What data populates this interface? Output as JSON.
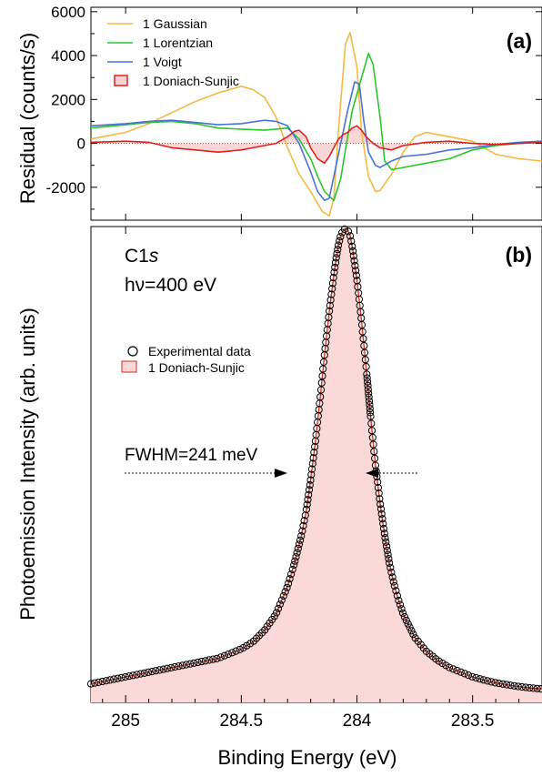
{
  "chart_data": [
    {
      "panel": "(a)",
      "type": "line",
      "ylabel": "Residual (counts/s)",
      "xlim": [
        285.15,
        283.2
      ],
      "ylim": [
        -3500,
        6200
      ],
      "yticks": [
        -2000,
        0,
        2000,
        4000,
        6000
      ],
      "yticklabels": [
        "-2000",
        "0",
        "2000",
        "4000",
        "6000"
      ],
      "grid": false,
      "zero_line": "dotted",
      "legend_position": "top-left",
      "series": [
        {
          "name": "1 Gaussian",
          "color": "#f5b942",
          "x": [
            285.15,
            285.0,
            284.9,
            284.8,
            284.7,
            284.6,
            284.5,
            284.45,
            284.4,
            284.35,
            284.3,
            284.25,
            284.2,
            284.15,
            284.12,
            284.1,
            284.08,
            284.05,
            284.03,
            284.0,
            283.98,
            283.95,
            283.92,
            283.9,
            283.85,
            283.8,
            283.75,
            283.7,
            283.6,
            283.5,
            283.4,
            283.3,
            283.2
          ],
          "y": [
            200,
            500,
            900,
            1400,
            1900,
            2300,
            2600,
            2450,
            2100,
            1200,
            -200,
            -1400,
            -2200,
            -3100,
            -3300,
            -2500,
            600,
            4500,
            5050,
            3500,
            500,
            -1500,
            -2200,
            -2150,
            -1400,
            -400,
            300,
            500,
            300,
            100,
            -500,
            -700,
            -800
          ]
        },
        {
          "name": "1 Lorentzian",
          "color": "#2cc52c",
          "x": [
            285.15,
            285.0,
            284.9,
            284.8,
            284.7,
            284.6,
            284.5,
            284.4,
            284.35,
            284.3,
            284.25,
            284.2,
            284.17,
            284.14,
            284.1,
            284.07,
            284.05,
            284.02,
            283.98,
            283.95,
            283.93,
            283.9,
            283.88,
            283.85,
            283.8,
            283.7,
            283.6,
            283.5,
            283.4,
            283.3,
            283.2
          ],
          "y": [
            700,
            850,
            950,
            1000,
            900,
            700,
            650,
            600,
            650,
            700,
            200,
            -700,
            -1500,
            -2200,
            -2600,
            -1600,
            -300,
            1500,
            3000,
            4100,
            3600,
            1200,
            -800,
            -1200,
            -1100,
            -900,
            -700,
            -300,
            -100,
            0,
            100
          ]
        },
        {
          "name": "1 Voigt",
          "color": "#4a72d6",
          "x": [
            285.15,
            285.0,
            284.9,
            284.8,
            284.7,
            284.6,
            284.5,
            284.4,
            284.35,
            284.3,
            284.25,
            284.2,
            284.17,
            284.14,
            284.12,
            284.1,
            284.07,
            284.04,
            284.01,
            283.99,
            283.97,
            283.95,
            283.92,
            283.9,
            283.85,
            283.8,
            283.7,
            283.6,
            283.5,
            283.4,
            283.3,
            283.2
          ],
          "y": [
            800,
            900,
            1000,
            1050,
            950,
            850,
            900,
            1050,
            1000,
            800,
            0,
            -1300,
            -2200,
            -2600,
            -2500,
            -1500,
            0,
            1500,
            2800,
            2700,
            1000,
            -400,
            -1000,
            -1100,
            -800,
            -600,
            -500,
            -300,
            -200,
            -50,
            50,
            100
          ]
        },
        {
          "name": "1 Doniach-Sunjic",
          "color": "#e0201c",
          "fill": "#fbd2d2",
          "x": [
            285.15,
            285.0,
            284.9,
            284.8,
            284.7,
            284.6,
            284.5,
            284.45,
            284.4,
            284.35,
            284.3,
            284.27,
            284.25,
            284.22,
            284.2,
            284.17,
            284.14,
            284.12,
            284.1,
            284.08,
            284.06,
            284.04,
            284.02,
            284.0,
            283.98,
            283.96,
            283.93,
            283.9,
            283.85,
            283.8,
            283.7,
            283.6,
            283.5,
            283.4,
            283.3,
            283.2
          ],
          "y": [
            50,
            100,
            50,
            -200,
            -300,
            -400,
            -300,
            -200,
            -100,
            0,
            300,
            550,
            600,
            300,
            -200,
            -700,
            -900,
            -600,
            -200,
            200,
            400,
            500,
            700,
            800,
            600,
            300,
            0,
            -200,
            -300,
            -100,
            50,
            100,
            0,
            -50,
            0,
            50
          ]
        }
      ]
    },
    {
      "panel": "(b)",
      "type": "scatter",
      "xlabel": "Binding Energy (eV)",
      "ylabel": "Photoemission Intensity (arb. units)",
      "xlim": [
        285.15,
        283.2
      ],
      "xticks": [
        285,
        284.5,
        284,
        283.5
      ],
      "xticklabels": [
        "285",
        "284.5",
        "284",
        "283.5"
      ],
      "ylim": [
        -0.02,
        1.0
      ],
      "grid": false,
      "legend_position": "upper-left",
      "annotations": {
        "core_level": "C1s",
        "photon_energy": "hν=400 eV",
        "fwhm": "FWHM=241 meV"
      },
      "series": [
        {
          "name": "Experimental data",
          "marker": "open-circle",
          "color": "#000000",
          "x": [
            285.15,
            285.1,
            285.05,
            285.0,
            284.95,
            284.9,
            284.85,
            284.8,
            284.75,
            284.7,
            284.65,
            284.6,
            284.55,
            284.5,
            284.45,
            284.4,
            284.35,
            284.3,
            284.27,
            284.24,
            284.22,
            284.2,
            284.18,
            284.16,
            284.14,
            284.12,
            284.1,
            284.09,
            284.08,
            284.07,
            284.06,
            284.05,
            284.04,
            284.03,
            284.02,
            284.0,
            283.98,
            283.96,
            283.94,
            283.92,
            283.9,
            283.88,
            283.86,
            283.84,
            283.82,
            283.8,
            283.75,
            283.7,
            283.65,
            283.6,
            283.55,
            283.5,
            283.45,
            283.4,
            283.35,
            283.3,
            283.25,
            283.2
          ],
          "y": [
            0.02,
            0.025,
            0.03,
            0.035,
            0.04,
            0.045,
            0.05,
            0.055,
            0.06,
            0.065,
            0.07,
            0.075,
            0.085,
            0.095,
            0.11,
            0.135,
            0.17,
            0.23,
            0.28,
            0.34,
            0.39,
            0.46,
            0.54,
            0.63,
            0.73,
            0.82,
            0.9,
            0.935,
            0.965,
            0.985,
            0.995,
            1.0,
            0.997,
            0.985,
            0.96,
            0.89,
            0.8,
            0.7,
            0.59,
            0.49,
            0.41,
            0.34,
            0.28,
            0.235,
            0.2,
            0.17,
            0.12,
            0.09,
            0.07,
            0.055,
            0.045,
            0.035,
            0.028,
            0.022,
            0.018,
            0.014,
            0.011,
            0.009
          ]
        },
        {
          "name": "1 Doniach-Sunjic",
          "type": "area",
          "color": "#c0392b",
          "fill": "#fbd9d9"
        }
      ]
    }
  ]
}
